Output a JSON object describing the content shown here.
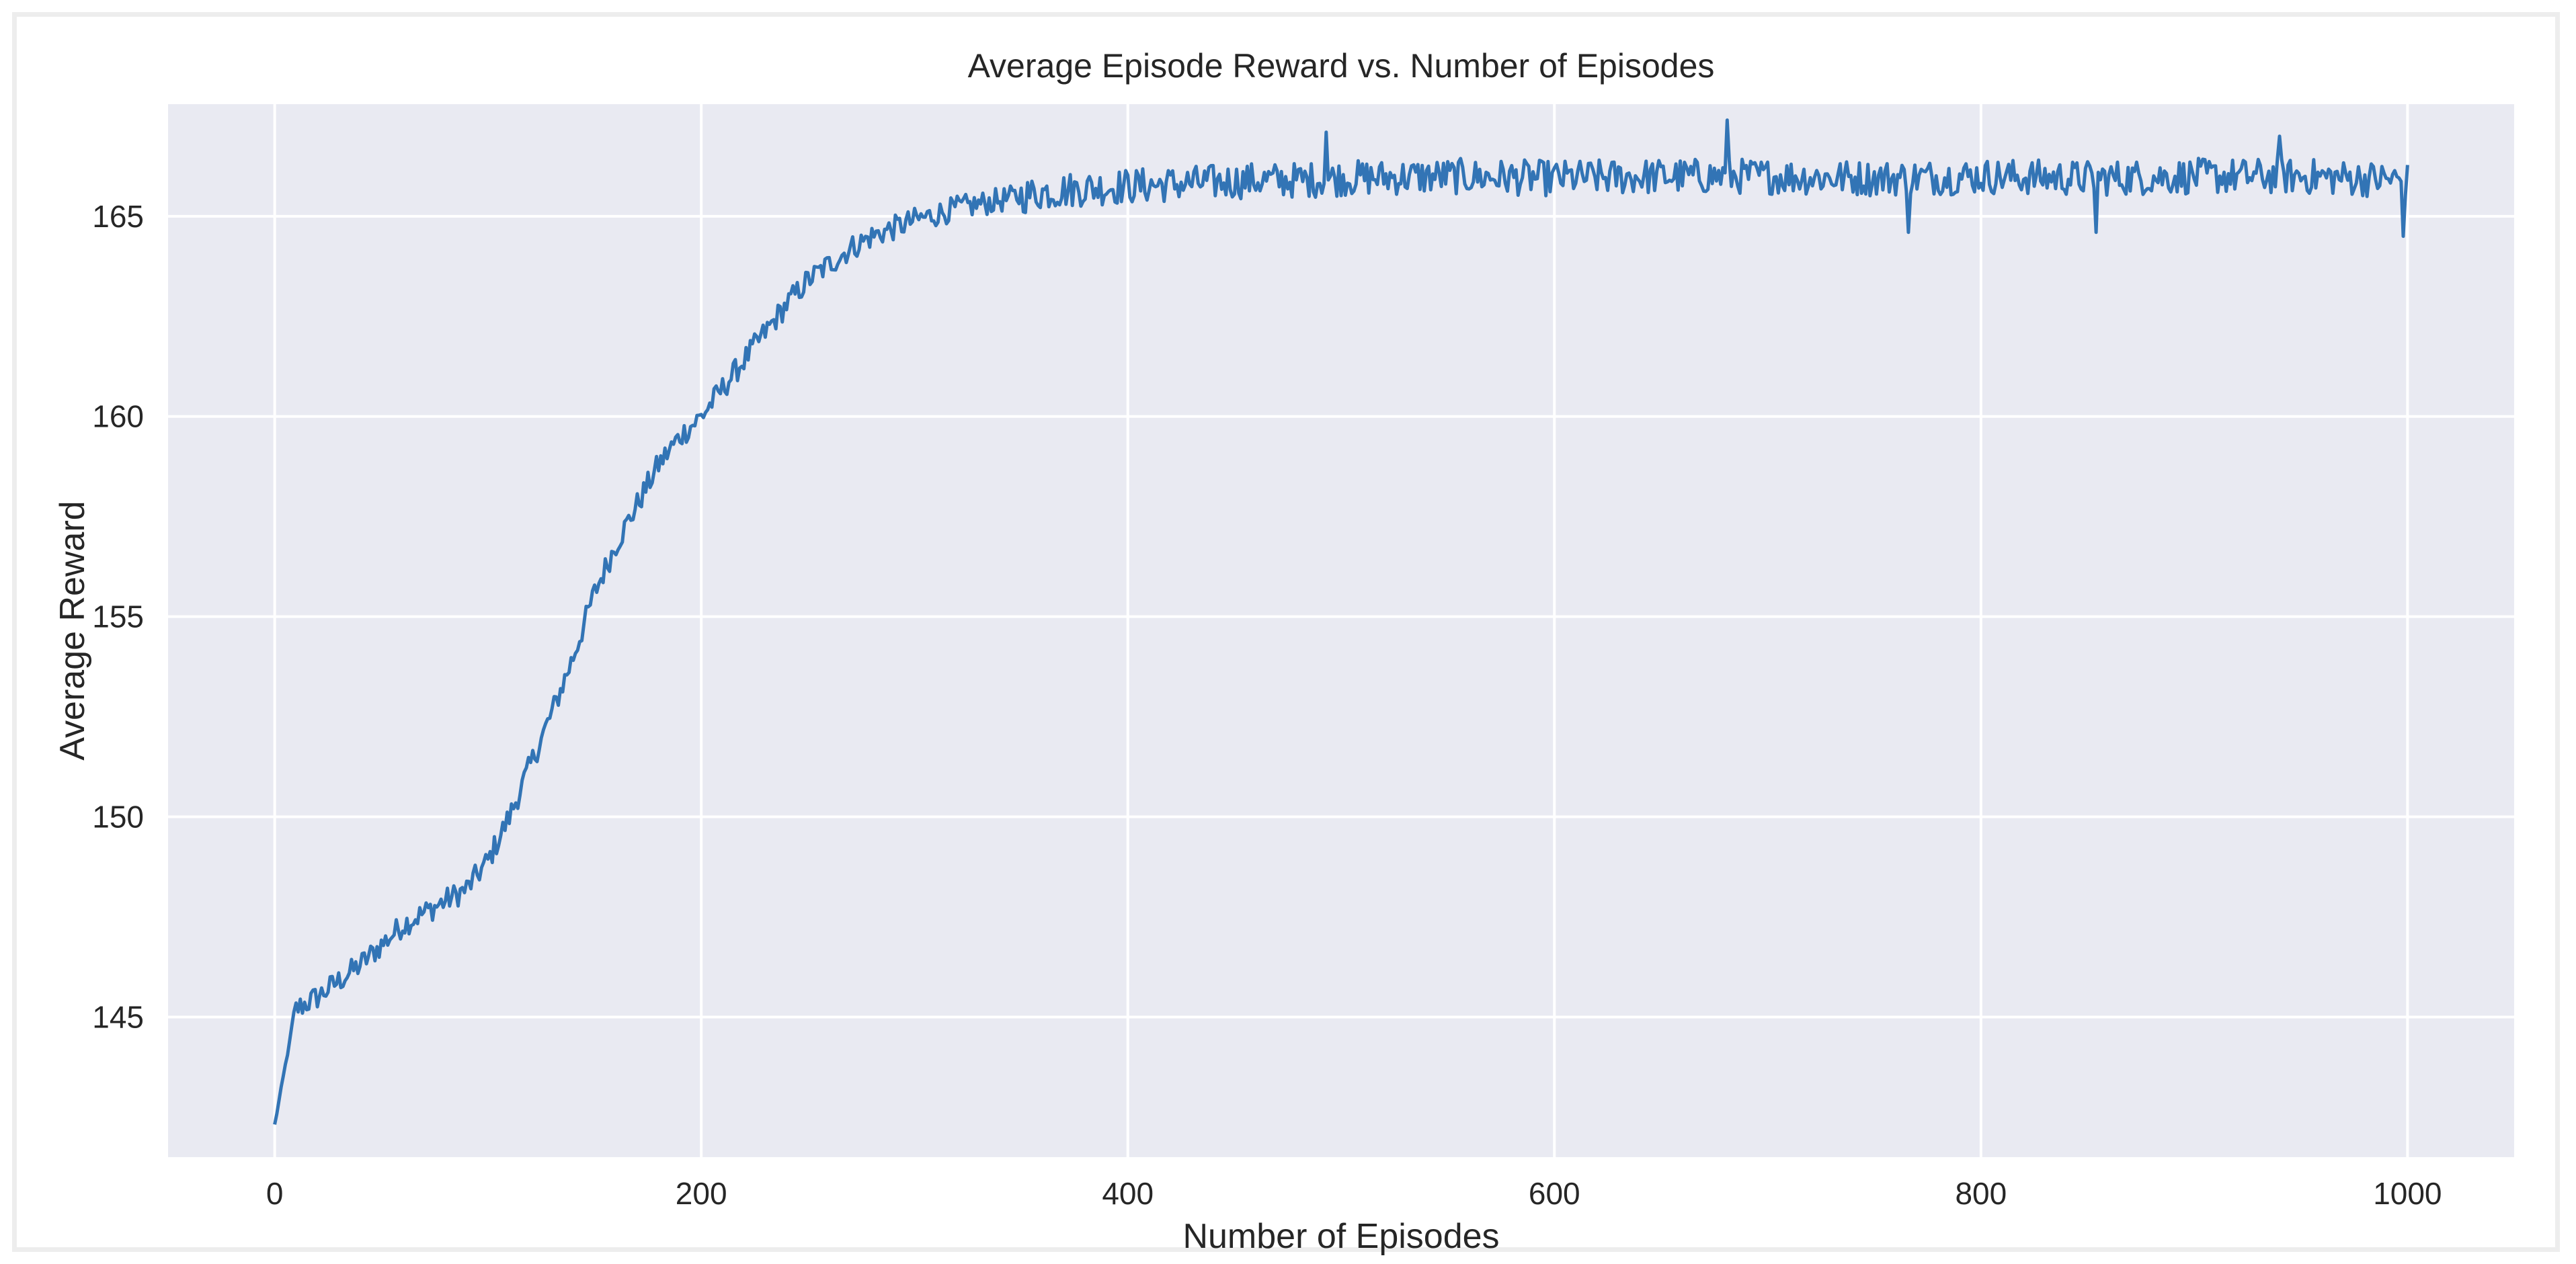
{
  "chart_data": {
    "type": "line",
    "title": "Average Episode Reward vs. Number of Episodes",
    "xlabel": "Number of Episodes",
    "ylabel": "Average Reward",
    "xlim": [
      -50,
      1050
    ],
    "ylim": [
      141.5,
      167.8
    ],
    "xticks": [
      0,
      200,
      400,
      600,
      800,
      1000
    ],
    "yticks": [
      145,
      150,
      155,
      160,
      165
    ],
    "grid": true,
    "legend": "none",
    "colors": {
      "line": "#3274b5",
      "plot_background": "#e9eaf2",
      "grid": "#ffffff"
    },
    "series": [
      {
        "x": [
          0,
          5,
          10,
          20,
          30,
          40,
          50,
          60,
          70,
          80,
          90,
          100,
          110,
          120,
          130,
          140,
          150,
          160,
          170,
          180,
          190,
          200,
          210,
          220,
          230,
          240,
          250,
          260,
          270,
          280,
          290,
          300,
          320,
          340,
          360,
          380,
          400,
          420,
          440,
          460,
          480,
          500,
          550,
          600,
          650,
          700,
          750,
          800,
          850,
          900,
          950,
          1000
        ],
        "values": [
          142.3,
          143.8,
          145.2,
          145.5,
          145.9,
          146.3,
          146.8,
          147.3,
          147.6,
          147.9,
          148.2,
          148.9,
          150.0,
          151.3,
          152.6,
          154.0,
          155.6,
          156.8,
          157.8,
          158.8,
          159.5,
          160.0,
          160.7,
          161.4,
          162.1,
          162.8,
          163.4,
          163.8,
          164.2,
          164.5,
          164.7,
          164.9,
          165.2,
          165.4,
          165.6,
          165.7,
          165.75,
          165.8,
          165.85,
          165.9,
          165.9,
          165.95,
          166.0,
          165.95,
          166.0,
          166.0,
          165.95,
          166.0,
          165.95,
          166.0,
          166.0,
          165.9
        ],
        "noise_amplitude": 0.45,
        "peak_points": [
          {
            "x": 493,
            "y": 167.1
          },
          {
            "x": 681,
            "y": 167.4
          },
          {
            "x": 940,
            "y": 167.0
          },
          {
            "x": 998,
            "y": 164.5
          },
          {
            "x": 854,
            "y": 164.6
          },
          {
            "x": 766,
            "y": 164.6
          }
        ]
      }
    ]
  }
}
